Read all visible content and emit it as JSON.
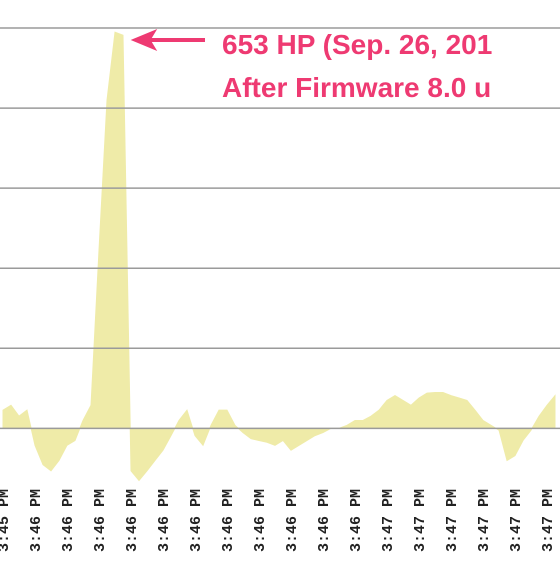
{
  "chart_data": {
    "type": "area",
    "categories": [
      "3:45 PM",
      null,
      null,
      null,
      "3:46 PM",
      null,
      null,
      null,
      "3:46 PM",
      null,
      null,
      null,
      "3:46 PM",
      null,
      null,
      null,
      "3:46 PM",
      null,
      null,
      null,
      "3:46 PM",
      null,
      null,
      null,
      "3:46 PM",
      null,
      null,
      null,
      "3:46 PM",
      null,
      null,
      null,
      "3:46 PM",
      null,
      null,
      null,
      "3:46 PM",
      null,
      null,
      null,
      "3:46 PM",
      null,
      null,
      null,
      "3:46 PM",
      null,
      null,
      null,
      "3:47 PM",
      null,
      null,
      null,
      "3:47 PM",
      null,
      null,
      null,
      "3:47 PM",
      null,
      null,
      null,
      "3:47 PM",
      null,
      null,
      null,
      "3:47 PM",
      null,
      null,
      null,
      "3:47 PM",
      null
    ],
    "values": [
      30,
      38,
      20,
      30,
      -28,
      -60,
      -70,
      -53,
      -28,
      -20,
      13,
      38,
      294,
      541,
      653,
      648,
      -70,
      -86,
      -70,
      -53,
      -36,
      -12,
      13,
      30,
      -12,
      -28,
      5,
      30,
      30,
      5,
      -7,
      -17,
      -20,
      -23,
      -28,
      -20,
      -36,
      -28,
      -20,
      -12,
      -7,
      0,
      0,
      5,
      13,
      13,
      20,
      30,
      46,
      54,
      46,
      38,
      50,
      58,
      59,
      59,
      54,
      50,
      46,
      30,
      13,
      5,
      -3,
      -53,
      -45,
      -20,
      -3,
      20,
      38,
      54
    ],
    "color": "#efeba8",
    "ylim": [
      -100,
      660
    ],
    "yticks": [
      0,
      132,
      264,
      396,
      528,
      660
    ],
    "grid": true,
    "annotations": [
      "653 HP (Sep. 26, 201",
      "After Firmware 8.0 u"
    ],
    "annotation_color": "#ee3a72"
  }
}
